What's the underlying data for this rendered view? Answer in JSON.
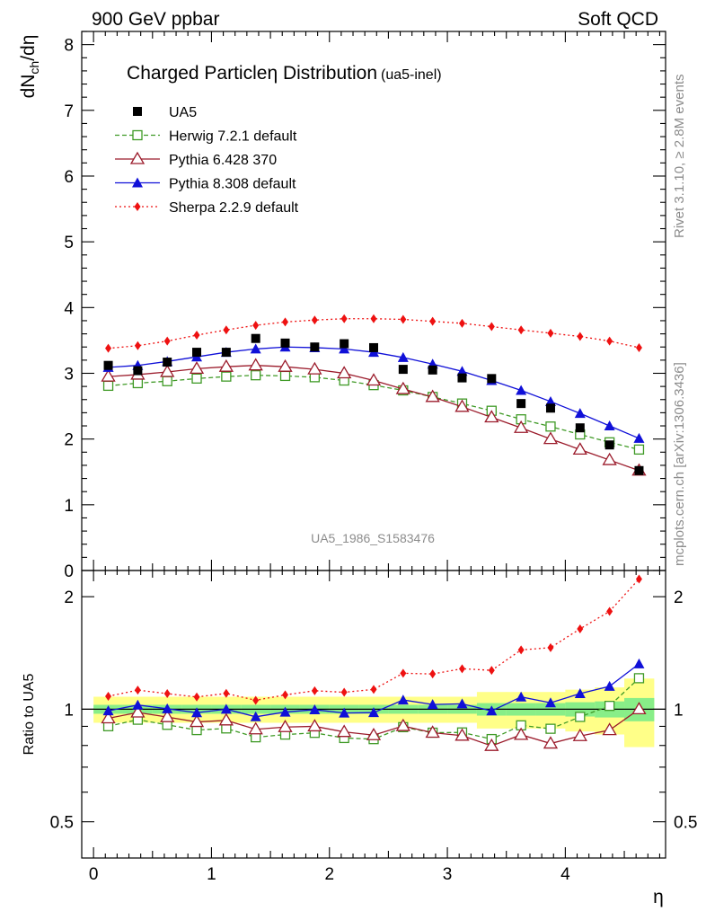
{
  "header": {
    "left": "900 GeV ppbar",
    "right": "Soft QCD"
  },
  "side_labels": {
    "rivet": "Rivet 3.1.10, ≥ 2.8M events",
    "mcplots": "mcplots.cern.ch [arXiv:1306.3436]"
  },
  "chart_data": {
    "type": "line",
    "title": "Charged Particleη Distribution",
    "title_suffix": "(ua5-inel)",
    "watermark": "UA5_1986_S1583476",
    "xlabel": "η",
    "ylabel": "dN_ch/dη",
    "ratio_ylabel": "Ratio to UA5",
    "xlim": [
      -0.1,
      4.85
    ],
    "ylim_main": [
      0,
      8.2
    ],
    "ylim_ratio": [
      0.4,
      2.35
    ],
    "ratio_log_scale": true,
    "x_ticks": [
      0,
      1,
      2,
      3,
      4
    ],
    "y_ticks_main": [
      0,
      1,
      2,
      3,
      4,
      5,
      6,
      7,
      8
    ],
    "y_ticks_ratio": [
      0.5,
      1,
      2
    ],
    "legend_placement": "top-left",
    "x": [
      0.125,
      0.375,
      0.625,
      0.875,
      1.125,
      1.375,
      1.625,
      1.875,
      2.125,
      2.375,
      2.625,
      2.875,
      3.125,
      3.375,
      3.625,
      3.875,
      4.125,
      4.375,
      4.625
    ],
    "data": {
      "name": "UA5",
      "color": "#000000",
      "values": [
        3.12,
        3.04,
        3.17,
        3.32,
        3.32,
        3.53,
        3.46,
        3.4,
        3.45,
        3.39,
        3.06,
        3.05,
        2.93,
        2.92,
        2.54,
        2.47,
        2.17,
        1.91,
        1.52
      ],
      "ratio_band": [
        0.05,
        0.05,
        0.05,
        0.05,
        0.05,
        0.05,
        0.05,
        0.05,
        0.05,
        0.05,
        0.05,
        0.05,
        0.05,
        0.07,
        0.07,
        0.07,
        0.08,
        0.09,
        0.13
      ]
    },
    "series": [
      {
        "name": "Herwig 7.2.1 default",
        "color": "#3f9a26",
        "marker": "open-square",
        "line": "dashed",
        "values": [
          2.81,
          2.85,
          2.88,
          2.92,
          2.95,
          2.97,
          2.96,
          2.94,
          2.89,
          2.82,
          2.74,
          2.64,
          2.54,
          2.43,
          2.3,
          2.19,
          2.07,
          1.95,
          1.84
        ]
      },
      {
        "name": "Pythia 6.428 370",
        "color": "#9b1b2b",
        "marker": "open-triangle",
        "line": "solid",
        "values": [
          2.95,
          2.98,
          3.02,
          3.07,
          3.1,
          3.12,
          3.1,
          3.06,
          3.0,
          2.89,
          2.76,
          2.64,
          2.49,
          2.33,
          2.17,
          2.0,
          1.84,
          1.68,
          1.52
        ]
      },
      {
        "name": "Pythia 8.308 default",
        "color": "#1010d8",
        "marker": "filled-triangle",
        "line": "solid",
        "values": [
          3.09,
          3.12,
          3.18,
          3.25,
          3.32,
          3.37,
          3.4,
          3.39,
          3.37,
          3.32,
          3.24,
          3.14,
          3.03,
          2.89,
          2.74,
          2.57,
          2.39,
          2.2,
          2.01
        ]
      },
      {
        "name": "Sherpa 2.2.9 default",
        "color": "#ee1111",
        "marker": "filled-diamond",
        "line": "dotted",
        "values": [
          3.38,
          3.42,
          3.49,
          3.58,
          3.66,
          3.73,
          3.78,
          3.81,
          3.83,
          3.83,
          3.82,
          3.79,
          3.76,
          3.71,
          3.66,
          3.61,
          3.56,
          3.49,
          3.39
        ]
      }
    ]
  }
}
